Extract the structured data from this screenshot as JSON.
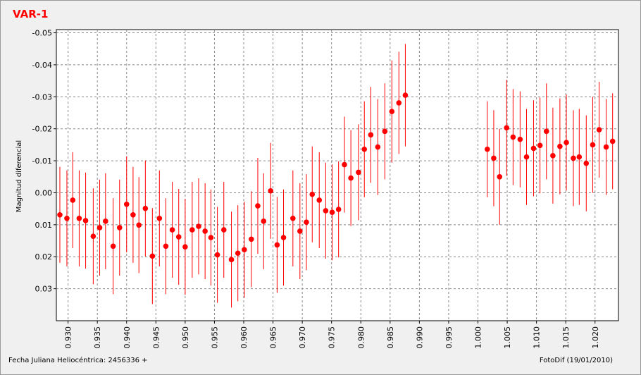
{
  "chart_data": {
    "type": "scatter",
    "title": "VAR-1",
    "ylabel": "Magnitud diferencial",
    "xlabel": "Fecha Juliana Heliocéntrica: 2456336 +",
    "credit": "FotoDif (19/01/2010)",
    "y_inverted": true,
    "grid": true,
    "xlim": [
      0.928,
      1.024
    ],
    "ylim": [
      -0.051,
      0.04
    ],
    "xticks": [
      {
        "value": 0.93,
        "label": "0.930"
      },
      0.935,
      {
        "value": 0.94,
        "label": "0.940"
      },
      0.945,
      {
        "value": 0.95,
        "label": "0.950"
      },
      0.955,
      {
        "value": 0.96,
        "label": "0.960"
      },
      0.965,
      {
        "value": 0.97,
        "label": "0.970"
      },
      0.975,
      {
        "value": 0.98,
        "label": "0.980"
      },
      0.985,
      {
        "value": 0.99,
        "label": "0.990"
      },
      0.995,
      {
        "value": 1.0,
        "label": "1.000"
      },
      1.005,
      {
        "value": 1.01,
        "label": "1.010"
      },
      1.015,
      {
        "value": 1.02,
        "label": "1.020"
      }
    ],
    "yticks": [
      -0.05,
      -0.04,
      -0.03,
      -0.02,
      -0.01,
      {
        "value": 0,
        "label": "0.00"
      },
      0.01,
      0.02,
      0.03
    ],
    "x": [
      0.9286,
      0.9298,
      0.9308,
      0.9319,
      0.933,
      0.9343,
      0.9354,
      0.9364,
      0.9377,
      0.9388,
      0.94,
      0.9411,
      0.9421,
      0.9432,
      0.9444,
      0.9456,
      0.9467,
      0.9478,
      0.9489,
      0.95,
      0.9512,
      0.9523,
      0.9534,
      0.9544,
      0.9555,
      0.9566,
      0.9579,
      0.959,
      0.9601,
      0.9613,
      0.9624,
      0.9634,
      0.9646,
      0.9657,
      0.9668,
      0.9684,
      0.9696,
      0.9707,
      0.9717,
      0.9729,
      0.974,
      0.9751,
      0.9762,
      0.9772,
      0.9783,
      0.9796,
      0.9806,
      0.9817,
      0.9829,
      0.9841,
      0.9853,
      0.9865,
      0.9876,
      1.0016,
      1.0027,
      1.0037,
      1.0049,
      1.006,
      1.0072,
      1.0083,
      1.0095,
      1.0106,
      1.0117,
      1.0128,
      1.014,
      1.0151,
      1.0163,
      1.0173,
      1.0185,
      1.0196,
      1.0207,
      1.0219,
      1.023
    ],
    "series": [
      {
        "color": "#ff0000",
        "values": [
          0.0069,
          0.008,
          0.0023,
          0.008,
          0.0087,
          0.0136,
          0.0109,
          0.0089,
          0.0167,
          0.0109,
          0.0036,
          0.0069,
          0.0101,
          0.0049,
          0.0198,
          0.008,
          0.0167,
          0.0116,
          0.0138,
          0.0169,
          0.0116,
          0.0105,
          0.012,
          0.014,
          0.0194,
          0.0116,
          0.0209,
          0.0189,
          0.0178,
          0.0145,
          0.0041,
          0.0089,
          -0.0006,
          0.0163,
          0.014,
          0.008,
          0.012,
          0.0092,
          0.0005,
          0.0023,
          0.0056,
          0.0061,
          0.0052,
          -0.0088,
          -0.0046,
          -0.0064,
          -0.0136,
          -0.0181,
          -0.0143,
          -0.0192,
          -0.0254,
          -0.0281,
          -0.0305,
          -0.0136,
          -0.0108,
          -0.005,
          -0.0203,
          -0.0174,
          -0.0167,
          -0.0112,
          -0.0139,
          -0.0148,
          -0.0192,
          -0.0116,
          -0.0145,
          -0.0157,
          -0.0108,
          -0.0112,
          -0.0092,
          -0.015,
          -0.0197,
          -0.0143,
          -0.0161
        ],
        "errors": [
          0.015,
          0.015,
          0.015,
          0.015,
          0.015,
          0.015,
          0.015,
          0.015,
          0.015,
          0.015,
          0.015,
          0.015,
          0.015,
          0.015,
          0.015,
          0.015,
          0.015,
          0.015,
          0.015,
          0.015,
          0.015,
          0.015,
          0.015,
          0.015,
          0.015,
          0.015,
          0.015,
          0.015,
          0.015,
          0.015,
          0.015,
          0.015,
          0.015,
          0.015,
          0.015,
          0.015,
          0.015,
          0.015,
          0.015,
          0.015,
          0.015,
          0.015,
          0.015,
          0.015,
          0.015,
          0.015,
          0.015,
          0.015,
          0.015,
          0.015,
          0.016,
          0.016,
          0.016,
          0.015,
          0.015,
          0.015,
          0.015,
          0.015,
          0.015,
          0.015,
          0.015,
          0.015,
          0.015,
          0.015,
          0.015,
          0.015,
          0.015,
          0.015,
          0.015,
          0.015,
          0.015,
          0.015,
          0.015
        ]
      }
    ]
  }
}
